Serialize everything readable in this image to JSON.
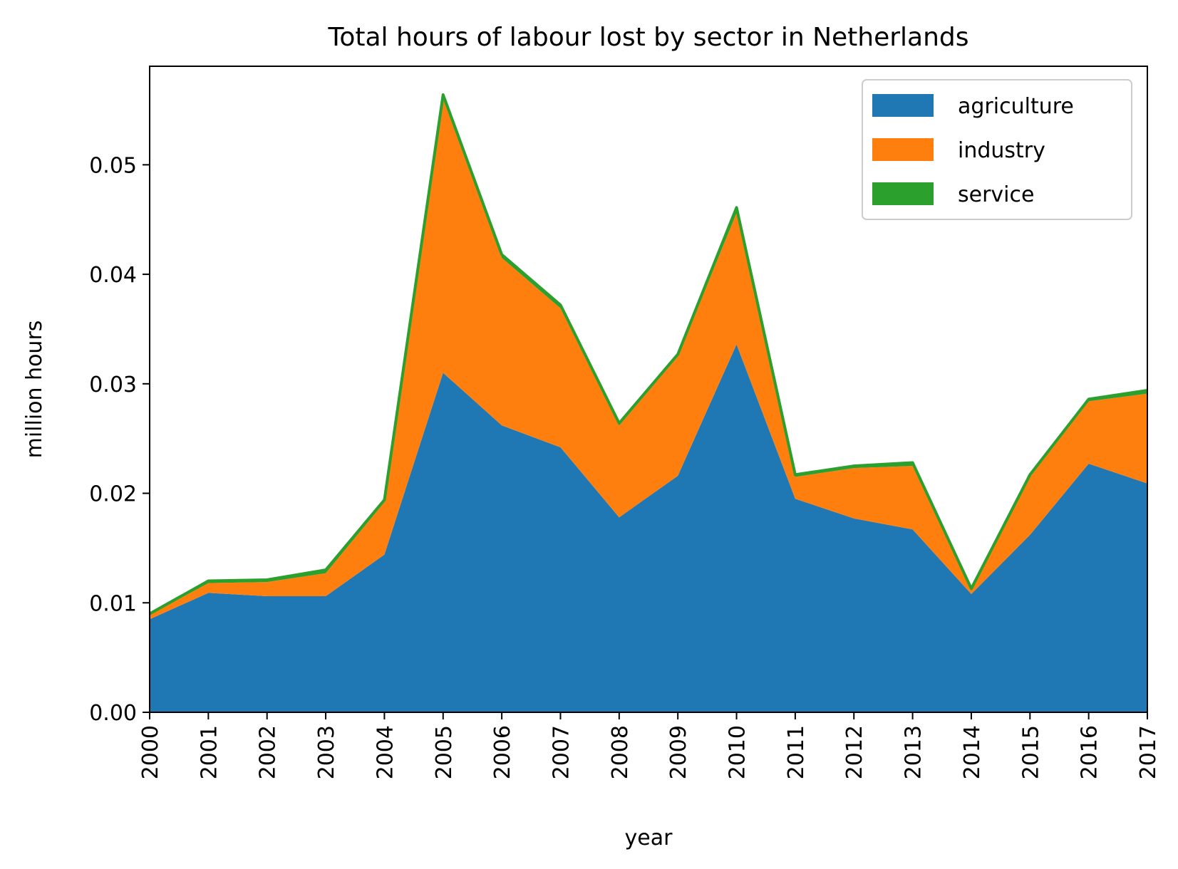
{
  "chart_data": {
    "type": "area",
    "stacked": true,
    "title": "Total hours of labour lost by sector in Netherlands",
    "xlabel": "year",
    "ylabel": "million hours",
    "x": [
      "2000",
      "2001",
      "2002",
      "2003",
      "2004",
      "2005",
      "2006",
      "2007",
      "2008",
      "2009",
      "2010",
      "2011",
      "2012",
      "2013",
      "2014",
      "2015",
      "2016",
      "2017"
    ],
    "xlim": [
      2000,
      2017
    ],
    "ylim": [
      0,
      0.059
    ],
    "yticks": [
      "0.00",
      "0.01",
      "0.02",
      "0.03",
      "0.04",
      "0.05"
    ],
    "grid": false,
    "legend_position": "top-right",
    "series": [
      {
        "name": "agriculture",
        "color": "#1f77b4",
        "values": [
          0.0085,
          0.0109,
          0.0106,
          0.0106,
          0.0144,
          0.031,
          0.0262,
          0.0242,
          0.0178,
          0.0216,
          0.0336,
          0.0195,
          0.0177,
          0.0167,
          0.0108,
          0.0162,
          0.0227,
          0.0209
        ]
      },
      {
        "name": "industry",
        "color": "#ff7f0e",
        "values": [
          0.0004,
          0.0009,
          0.0013,
          0.0021,
          0.0048,
          0.025,
          0.0153,
          0.0127,
          0.0084,
          0.0109,
          0.012,
          0.002,
          0.0046,
          0.0058,
          0.0003,
          0.0053,
          0.0057,
          0.0082
        ]
      },
      {
        "name": "service",
        "color": "#2ca02c",
        "values": [
          0.0001,
          0.0002,
          0.0002,
          0.0003,
          0.0002,
          0.0004,
          0.0003,
          0.0003,
          0.0002,
          0.0002,
          0.0005,
          0.0002,
          0.0002,
          0.0003,
          0.0002,
          0.0002,
          0.0002,
          0.0003
        ]
      }
    ]
  }
}
